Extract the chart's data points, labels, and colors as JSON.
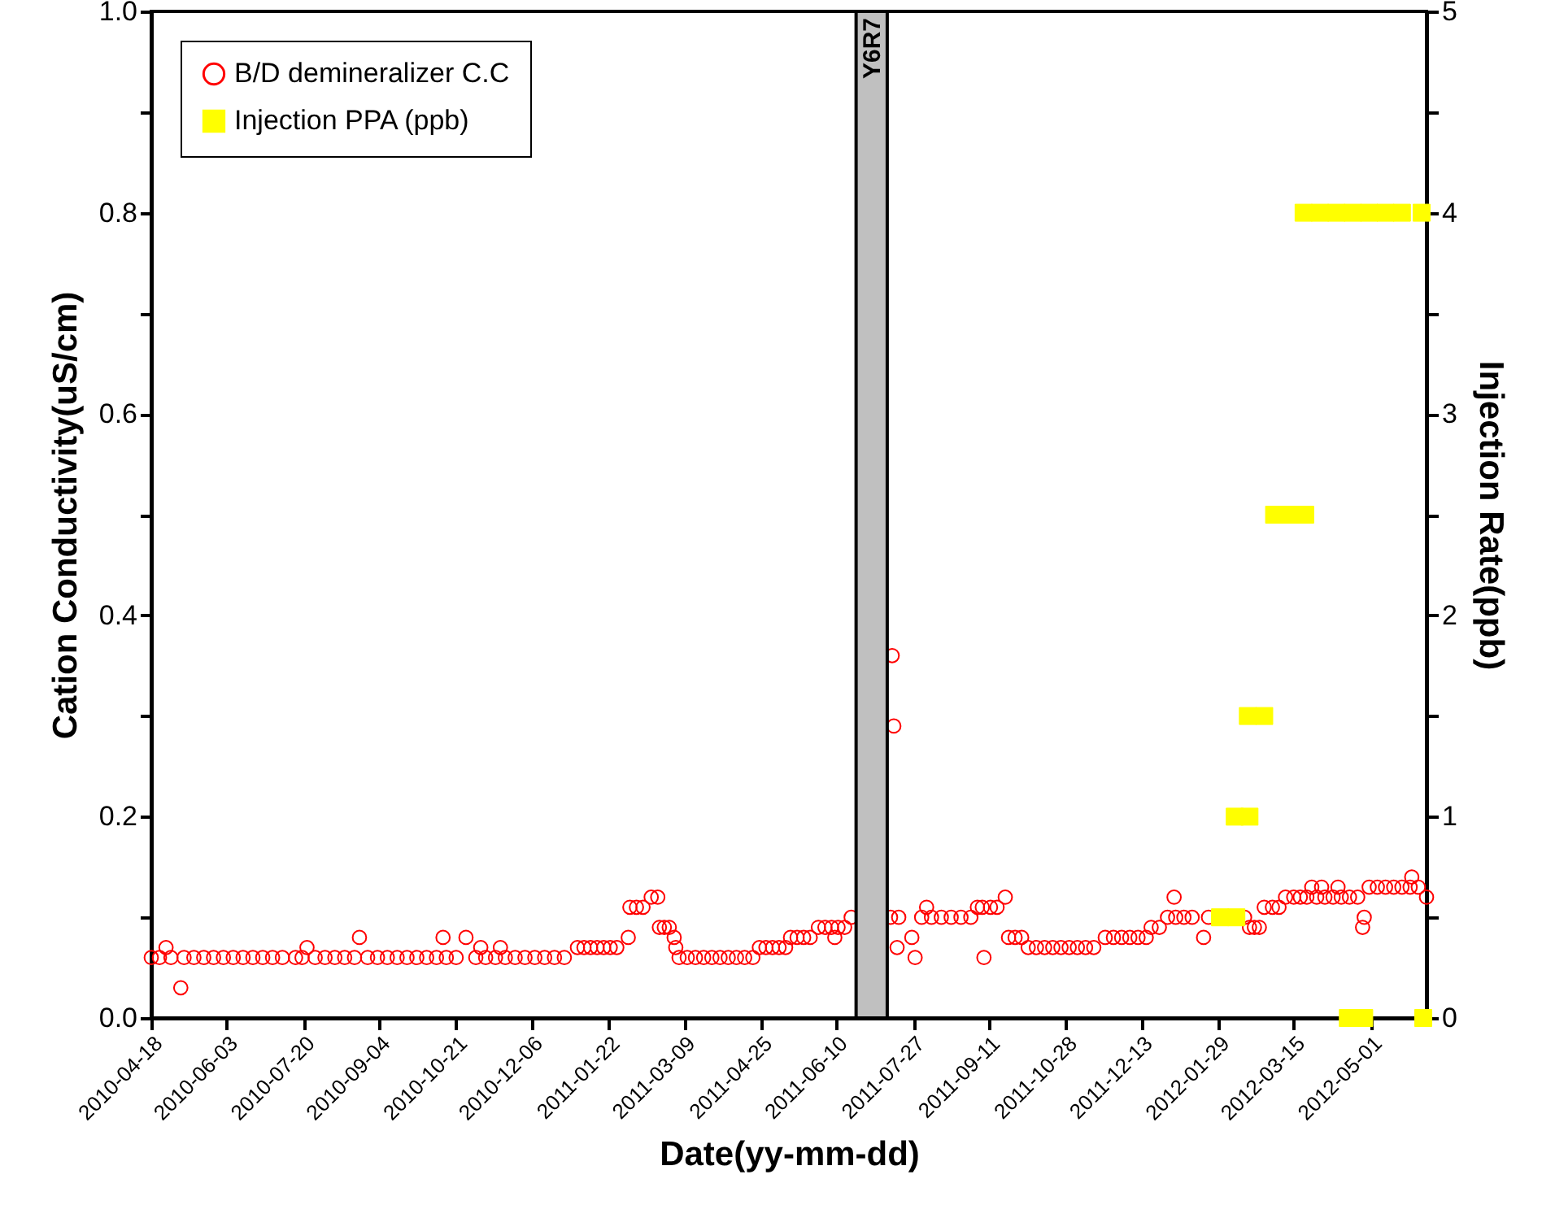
{
  "chart_data": {
    "type": "scatter",
    "xlabel": "Date(yy-mm-dd)",
    "ylabel": "Cation Conductivity(uS/cm)",
    "y2label": "Injection Rate(ppb)",
    "xlim": [
      "2010-04-18",
      "2012-06-04"
    ],
    "xticks": [
      "2010-04-18",
      "2010-06-03",
      "2010-07-20",
      "2010-09-04",
      "2010-10-21",
      "2010-12-06",
      "2011-01-22",
      "2011-03-09",
      "2011-04-25",
      "2011-06-10",
      "2011-07-27",
      "2011-09-11",
      "2011-10-28",
      "2011-12-13",
      "2012-01-29",
      "2012-03-15",
      "2012-05-01"
    ],
    "ylim": [
      0,
      1
    ],
    "yticks": [
      {
        "value": 0,
        "label": "0.0"
      },
      {
        "value": 0.1,
        "label": null
      },
      0.2,
      {
        "value": 0.3,
        "label": null
      },
      0.4,
      {
        "value": 0.5,
        "label": null
      },
      0.6,
      {
        "value": 0.7,
        "label": null
      },
      0.8,
      {
        "value": 0.9,
        "label": null
      },
      {
        "value": 1,
        "label": "1.0"
      }
    ],
    "y2lim": [
      0,
      5
    ],
    "y2ticks": [
      0,
      {
        "value": 0.5,
        "label": null
      },
      1,
      {
        "value": 1.5,
        "label": null
      },
      2,
      {
        "value": 2.5,
        "label": null
      },
      3,
      {
        "value": 3.5,
        "label": null
      },
      4,
      {
        "value": 4.5,
        "label": null
      },
      5
    ],
    "legend": "top left",
    "grid": false,
    "bands": [
      {
        "axis": "x",
        "from": "2011-06-22",
        "to": "2011-07-11",
        "label": "Y6R7",
        "color": "#c0c0c0"
      }
    ],
    "series": [
      {
        "name": "B/D demineralizer C.C",
        "color": "#ff0000",
        "marker": "circle",
        "x": [
          "2010-04-18",
          "2010-04-23",
          "2010-04-27",
          "2010-04-30",
          "2010-05-06",
          "2010-05-08",
          "2010-05-14",
          "2010-05-20",
          "2010-05-26",
          "2010-06-01",
          "2010-06-07",
          "2010-06-13",
          "2010-06-19",
          "2010-06-25",
          "2010-07-01",
          "2010-07-07",
          "2010-07-15",
          "2010-07-19",
          "2010-07-22",
          "2010-07-27",
          "2010-08-02",
          "2010-08-08",
          "2010-08-14",
          "2010-08-20",
          "2010-08-23",
          "2010-08-28",
          "2010-09-03",
          "2010-09-09",
          "2010-09-15",
          "2010-09-21",
          "2010-09-27",
          "2010-10-03",
          "2010-10-09",
          "2010-10-13",
          "2010-10-15",
          "2010-10-21",
          "2010-10-27",
          "2010-11-02",
          "2010-11-05",
          "2010-11-08",
          "2010-11-14",
          "2010-11-17",
          "2010-11-20",
          "2010-11-26",
          "2010-12-02",
          "2010-12-08",
          "2010-12-14",
          "2010-12-20",
          "2010-12-26",
          "2011-01-03",
          "2011-01-07",
          "2011-01-11",
          "2011-01-15",
          "2011-01-19",
          "2011-01-23",
          "2011-01-27",
          "2011-02-03",
          "2011-02-04",
          "2011-02-08",
          "2011-02-12",
          "2011-02-17",
          "2011-02-21",
          "2011-02-22",
          "2011-02-25",
          "2011-02-28",
          "2011-03-03",
          "2011-03-04",
          "2011-03-06",
          "2011-03-11",
          "2011-03-16",
          "2011-03-21",
          "2011-03-26",
          "2011-03-31",
          "2011-04-05",
          "2011-04-10",
          "2011-04-15",
          "2011-04-20",
          "2011-04-24",
          "2011-04-28",
          "2011-05-02",
          "2011-05-06",
          "2011-05-10",
          "2011-05-13",
          "2011-05-17",
          "2011-05-21",
          "2011-05-25",
          "2011-05-30",
          "2011-06-03",
          "2011-06-07",
          "2011-06-09",
          "2011-06-11",
          "2011-06-15",
          "2011-06-19",
          "2011-07-13",
          "2011-07-14",
          "2011-07-15",
          "2011-07-17",
          "2011-07-18",
          "2011-07-26",
          "2011-07-28",
          "2011-08-01",
          "2011-08-04",
          "2011-08-07",
          "2011-08-13",
          "2011-08-19",
          "2011-08-25",
          "2011-08-31",
          "2011-09-04",
          "2011-09-07",
          "2011-09-08",
          "2011-09-12",
          "2011-09-16",
          "2011-09-21",
          "2011-09-23",
          "2011-09-27",
          "2011-10-01",
          "2011-10-05",
          "2011-10-10",
          "2011-10-15",
          "2011-10-20",
          "2011-10-25",
          "2011-10-30",
          "2011-11-04",
          "2011-11-09",
          "2011-11-14",
          "2011-11-21",
          "2011-11-26",
          "2011-12-01",
          "2011-12-06",
          "2011-12-11",
          "2011-12-16",
          "2011-12-19",
          "2011-12-24",
          "2011-12-29",
          "2012-01-02",
          "2012-01-03",
          "2012-01-08",
          "2012-01-13",
          "2012-01-20",
          "2012-01-23",
          "2012-02-14",
          "2012-02-17",
          "2012-02-20",
          "2012-02-23",
          "2012-02-26",
          "2012-03-02",
          "2012-03-06",
          "2012-03-10",
          "2012-03-15",
          "2012-03-19",
          "2012-03-23",
          "2012-03-26",
          "2012-03-29",
          "2012-04-01",
          "2012-04-03",
          "2012-04-08",
          "2012-04-11",
          "2012-04-13",
          "2012-04-18",
          "2012-04-23",
          "2012-04-26",
          "2012-04-27",
          "2012-04-30",
          "2012-05-05",
          "2012-05-10",
          "2012-05-15",
          "2012-05-20",
          "2012-05-25",
          "2012-05-26",
          "2012-05-30",
          "2012-06-04"
        ],
        "values": [
          0.06,
          0.06,
          0.07,
          0.06,
          0.03,
          0.06,
          0.06,
          0.06,
          0.06,
          0.06,
          0.06,
          0.06,
          0.06,
          0.06,
          0.06,
          0.06,
          0.06,
          0.06,
          0.07,
          0.06,
          0.06,
          0.06,
          0.06,
          0.06,
          0.08,
          0.06,
          0.06,
          0.06,
          0.06,
          0.06,
          0.06,
          0.06,
          0.06,
          0.08,
          0.06,
          0.06,
          0.08,
          0.06,
          0.07,
          0.06,
          0.06,
          0.07,
          0.06,
          0.06,
          0.06,
          0.06,
          0.06,
          0.06,
          0.06,
          0.07,
          0.07,
          0.07,
          0.07,
          0.07,
          0.07,
          0.07,
          0.08,
          0.11,
          0.11,
          0.11,
          0.12,
          0.12,
          0.09,
          0.09,
          0.09,
          0.08,
          0.07,
          0.06,
          0.06,
          0.06,
          0.06,
          0.06,
          0.06,
          0.06,
          0.06,
          0.06,
          0.06,
          0.07,
          0.07,
          0.07,
          0.07,
          0.07,
          0.08,
          0.08,
          0.08,
          0.08,
          0.09,
          0.09,
          0.09,
          0.08,
          0.09,
          0.09,
          0.1,
          0.1,
          0.36,
          0.29,
          0.07,
          0.1,
          0.08,
          0.06,
          0.1,
          0.11,
          0.1,
          0.1,
          0.1,
          0.1,
          0.1,
          0.11,
          0.11,
          0.06,
          0.11,
          0.11,
          0.12,
          0.08,
          0.08,
          0.08,
          0.07,
          0.07,
          0.07,
          0.07,
          0.07,
          0.07,
          0.07,
          0.07,
          0.07,
          0.08,
          0.08,
          0.08,
          0.08,
          0.08,
          0.08,
          0.09,
          0.09,
          0.1,
          0.12,
          0.1,
          0.1,
          0.1,
          0.08,
          0.1,
          0.1,
          0.09,
          0.09,
          0.09,
          0.11,
          0.11,
          0.11,
          0.12,
          0.12,
          0.12,
          0.12,
          0.13,
          0.12,
          0.13,
          0.12,
          0.12,
          0.13,
          0.12,
          0.12,
          0.12,
          0.09,
          0.1,
          0.13,
          0.13,
          0.13,
          0.13,
          0.13,
          0.13,
          0.14,
          0.13,
          0.12
        ]
      },
      {
        "name": "Injection PPA (ppb)",
        "color": "#ffff00",
        "marker": "square",
        "axis": "y2",
        "x": [
          "2012-01-30",
          "2012-02-09",
          "2012-02-08",
          "2012-02-17",
          "2012-02-16",
          "2012-02-26",
          "2012-03-03",
          "2012-03-13",
          "2012-03-22",
          "2012-03-21",
          "2012-03-31",
          "2012-04-10",
          "2012-04-20",
          "2012-04-30",
          "2012-05-10",
          "2012-05-20",
          "2012-06-01",
          "2012-04-17",
          "2012-04-27",
          "2012-06-02"
        ],
        "values": [
          0.5,
          0.5,
          1,
          1,
          1.5,
          1.5,
          2.5,
          2.5,
          2.5,
          4,
          4,
          4,
          4,
          4,
          4,
          4,
          4,
          0,
          0,
          0
        ]
      }
    ]
  }
}
